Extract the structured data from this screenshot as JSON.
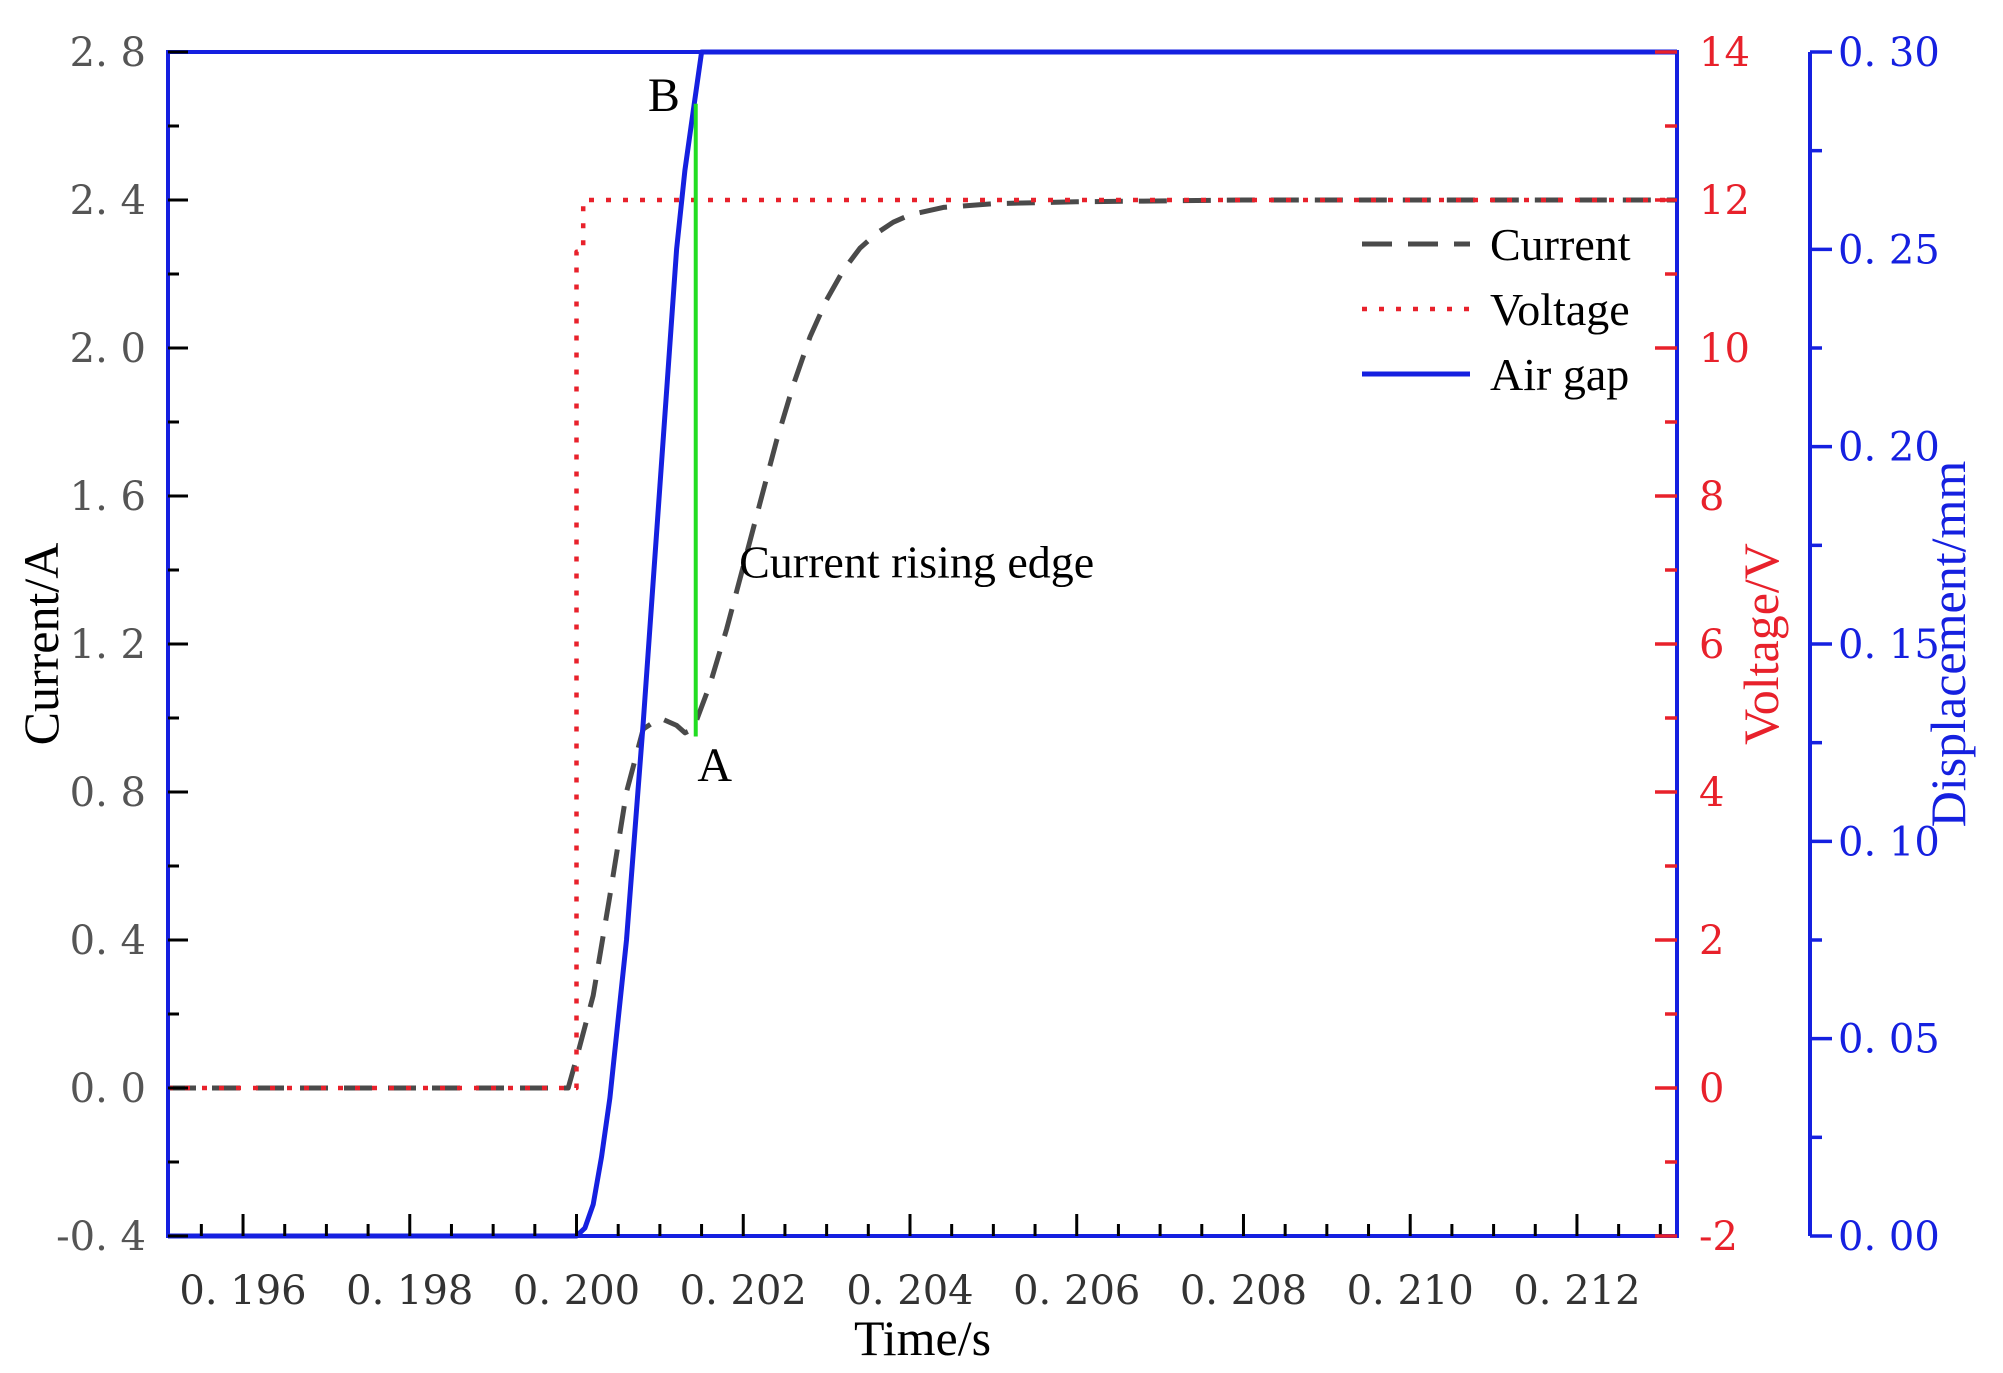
{
  "chart_data": {
    "type": "line",
    "title": "",
    "xlabel": "Time/s",
    "xlim": [
      0.1951,
      0.2132
    ],
    "x_ticks": [
      0.196,
      0.198,
      0.2,
      0.202,
      0.204,
      0.206,
      0.208,
      0.21,
      0.212
    ],
    "x_tick_labels": [
      "0. 196",
      "0. 198",
      "0. 200",
      "0. 202",
      "0. 204",
      "0. 206",
      "0. 208",
      "0. 210",
      "0. 212"
    ],
    "axes": {
      "left": {
        "label": "Current/A",
        "range": [
          -0.4,
          2.8
        ],
        "color": "#000000",
        "tick_color": "#555555",
        "ticks": [
          -0.4,
          0.0,
          0.4,
          0.8,
          1.2,
          1.6,
          2.0,
          2.4,
          2.8
        ],
        "tick_labels": [
          "-0. 4",
          "0. 0",
          "0. 4",
          "0. 8",
          "1. 2",
          "1. 6",
          "2. 0",
          "2. 4",
          "2. 8"
        ]
      },
      "right": {
        "label": "Voltage/V",
        "range": [
          -2,
          14
        ],
        "color": "#e8212b",
        "ticks": [
          -2,
          0,
          2,
          4,
          6,
          8,
          10,
          12,
          14
        ],
        "tick_labels": [
          "-2",
          "0",
          "2",
          "4",
          "6",
          "8",
          "10",
          "12",
          "14"
        ]
      },
      "right2": {
        "label": "Displacement/mm",
        "range": [
          0.0,
          0.3
        ],
        "color": "#1520e0",
        "ticks": [
          0.0,
          0.05,
          0.1,
          0.15,
          0.2,
          0.25,
          0.3
        ],
        "tick_labels": [
          "0. 00",
          "0. 05",
          "0. 10",
          "0. 15",
          "0. 20",
          "0. 25",
          "0. 30"
        ]
      }
    },
    "series": [
      {
        "name": "Current",
        "axis": "left",
        "style": "dashed",
        "color": "#4a4a4a",
        "x": [
          0.1951,
          0.1999,
          0.2,
          0.2002,
          0.2004,
          0.2006,
          0.2008,
          0.201,
          0.2012,
          0.2013,
          0.2014,
          0.2016,
          0.2018,
          0.202,
          0.2022,
          0.2024,
          0.2026,
          0.2028,
          0.203,
          0.2032,
          0.2034,
          0.2036,
          0.2038,
          0.204,
          0.2044,
          0.205,
          0.206,
          0.208,
          0.2132
        ],
        "y": [
          0.0,
          0.0,
          0.08,
          0.25,
          0.52,
          0.8,
          0.97,
          1.0,
          0.98,
          0.96,
          0.97,
          1.09,
          1.24,
          1.41,
          1.58,
          1.75,
          1.9,
          2.03,
          2.13,
          2.21,
          2.27,
          2.31,
          2.34,
          2.36,
          2.38,
          2.39,
          2.395,
          2.4,
          2.4
        ]
      },
      {
        "name": "Voltage",
        "axis": "right",
        "style": "dotted",
        "color": "#e8212b",
        "x": [
          0.1951,
          0.2,
          0.2,
          0.20008,
          0.20008,
          0.2132
        ],
        "y": [
          0.0,
          0.0,
          11.3,
          11.3,
          12.0,
          12.0
        ]
      },
      {
        "name": "Air gap",
        "axis": "right2",
        "style": "solid",
        "color": "#1520e0",
        "x": [
          0.1951,
          0.2,
          0.2001,
          0.2002,
          0.2003,
          0.2004,
          0.2006,
          0.2008,
          0.201,
          0.2012,
          0.2013,
          0.2014,
          0.2015,
          0.2132
        ],
        "y": [
          0.0,
          0.0,
          0.002,
          0.008,
          0.02,
          0.035,
          0.075,
          0.13,
          0.19,
          0.25,
          0.27,
          0.285,
          0.3,
          0.3
        ]
      }
    ],
    "annotations": [
      {
        "text": "A",
        "x": 0.20145,
        "y": 0.83,
        "axis": "left"
      },
      {
        "text": "B",
        "x": 0.20124,
        "y": 2.64,
        "axis": "left"
      },
      {
        "text": "Current rising edge",
        "x": 0.20195,
        "y": 1.38,
        "axis": "left"
      }
    ],
    "marker_line": {
      "color": "#22dd22",
      "x": 0.20143,
      "from_y": 0.95,
      "to_y": 2.66,
      "axis": "left"
    },
    "legend": {
      "position": "top-right",
      "entries": [
        "Current",
        "Voltage",
        "Air gap"
      ]
    },
    "grid": false
  }
}
